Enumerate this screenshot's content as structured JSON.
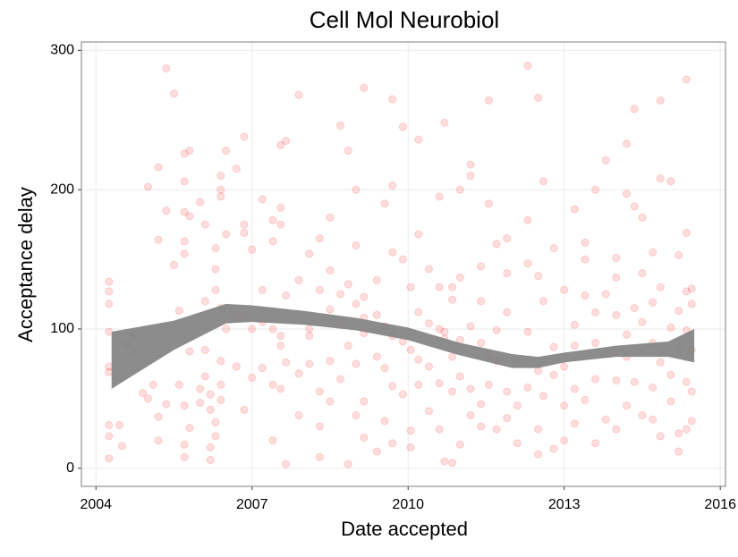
{
  "chart_data": {
    "type": "scatter",
    "title": "Cell Mol Neurobiol",
    "x_label": "Date accepted",
    "y_label": "Acceptance delay",
    "xlim": [
      2003.72,
      2016.1
    ],
    "ylim": [
      -13,
      306
    ],
    "xticks": [
      2004,
      2007,
      2010,
      2013,
      2016
    ],
    "yticks": [
      0,
      100,
      200,
      300
    ],
    "grid": true,
    "series": [
      {
        "color": "#ff0000",
        "opacity": 0.13,
        "x": [
          2004.25,
          2004.25,
          2004.25,
          2004.25,
          2004.25,
          2004.25,
          2004.25,
          2004.25,
          2004.25,
          2004.45,
          2004.5,
          2004.6,
          2004.7,
          2004.7,
          2004.9,
          2005.0,
          2005.0,
          2005.1,
          2005.2,
          2005.2,
          2005.2,
          2005.2,
          2005.35,
          2005.35,
          2005.35,
          2005.5,
          2005.5,
          2005.6,
          2005.6,
          2005.7,
          2005.7,
          2005.7,
          2005.7,
          2005.7,
          2005.7,
          2005.7,
          2005.7,
          2005.8,
          2005.8,
          2005.8,
          2005.8,
          2006.0,
          2006.0,
          2006.0,
          2006.1,
          2006.1,
          2006.1,
          2006.1,
          2006.2,
          2006.2,
          2006.2,
          2006.2,
          2006.3,
          2006.3,
          2006.3,
          2006.3,
          2006.3,
          2006.4,
          2006.4,
          2006.4,
          2006.4,
          2006.4,
          2006.4,
          2006.4,
          2006.5,
          2006.5,
          2006.5,
          2006.7,
          2006.7,
          2006.7,
          2006.85,
          2006.85,
          2006.85,
          2006.85,
          2006.85,
          2007.0,
          2007.0,
          2007.0,
          2007.2,
          2007.2,
          2007.2,
          2007.2,
          2007.4,
          2007.4,
          2007.4,
          2007.4,
          2007.4,
          2007.55,
          2007.55,
          2007.55,
          2007.55,
          2007.55,
          2007.55,
          2007.65,
          2007.65,
          2007.65,
          2007.65,
          2007.9,
          2007.9,
          2007.9,
          2007.9,
          2008.1,
          2008.1,
          2008.1,
          2008.1,
          2008.3,
          2008.3,
          2008.3,
          2008.3,
          2008.3,
          2008.5,
          2008.5,
          2008.5,
          2008.5,
          2008.5,
          2008.7,
          2008.7,
          2008.7,
          2008.7,
          2008.85,
          2008.85,
          2008.85,
          2008.85,
          2009.0,
          2009.0,
          2009.0,
          2009.0,
          2009.0,
          2009.15,
          2009.15,
          2009.15,
          2009.15,
          2009.15,
          2009.15,
          2009.4,
          2009.4,
          2009.4,
          2009.4,
          2009.55,
          2009.55,
          2009.55,
          2009.55,
          2009.7,
          2009.7,
          2009.7,
          2009.7,
          2009.7,
          2009.7,
          2009.9,
          2009.9,
          2009.9,
          2009.9,
          2010.05,
          2010.05,
          2010.05,
          2010.05,
          2010.2,
          2010.2,
          2010.2,
          2010.2,
          2010.2,
          2010.4,
          2010.4,
          2010.4,
          2010.4,
          2010.6,
          2010.6,
          2010.6,
          2010.6,
          2010.6,
          2010.7,
          2010.7,
          2010.7,
          2010.7,
          2010.85,
          2010.85,
          2010.85,
          2010.85,
          2010.85,
          2011.0,
          2011.0,
          2011.0,
          2011.0,
          2011.0,
          2011.2,
          2011.2,
          2011.2,
          2011.2,
          2011.2,
          2011.4,
          2011.4,
          2011.4,
          2011.4,
          2011.4,
          2011.55,
          2011.55,
          2011.55,
          2011.55,
          2011.7,
          2011.7,
          2011.7,
          2011.7,
          2011.9,
          2011.9,
          2011.9,
          2011.9,
          2011.9,
          2012.1,
          2012.1,
          2012.1,
          2012.3,
          2012.3,
          2012.3,
          2012.3,
          2012.3,
          2012.5,
          2012.5,
          2012.5,
          2012.5,
          2012.5,
          2012.6,
          2012.6,
          2012.6,
          2012.8,
          2012.8,
          2012.8,
          2012.8,
          2013.0,
          2013.0,
          2013.0,
          2013.0,
          2013.2,
          2013.2,
          2013.2,
          2013.2,
          2013.2,
          2013.4,
          2013.4,
          2013.4,
          2013.4,
          2013.6,
          2013.6,
          2013.6,
          2013.6,
          2013.6,
          2013.8,
          2013.8,
          2013.8,
          2013.8,
          2014.0,
          2014.0,
          2014.0,
          2014.0,
          2014.0,
          2014.2,
          2014.2,
          2014.2,
          2014.2,
          2014.2,
          2014.35,
          2014.35,
          2014.35,
          2014.35,
          2014.5,
          2014.5,
          2014.5,
          2014.5,
          2014.7,
          2014.7,
          2014.7,
          2014.7,
          2014.7,
          2014.85,
          2014.85,
          2014.85,
          2014.85,
          2014.85,
          2015.05,
          2015.05,
          2015.05,
          2015.05,
          2015.2,
          2015.2,
          2015.2,
          2015.2,
          2015.2,
          2015.35,
          2015.35,
          2015.35,
          2015.35,
          2015.35,
          2015.35,
          2015.45,
          2015.45,
          2015.45,
          2015.45,
          2015.45
        ],
        "values": [
          134,
          127,
          118,
          98,
          73,
          69,
          31,
          23,
          7,
          31,
          16,
          89,
          95,
          83,
          54,
          202,
          50,
          60,
          164,
          216,
          20,
          37,
          287,
          46,
          185,
          146,
          269,
          113,
          60,
          226,
          184,
          206,
          163,
          154,
          45,
          17,
          8,
          228,
          181,
          84,
          29,
          57,
          47,
          191,
          175,
          120,
          66,
          85,
          6,
          15,
          53,
          42,
          158,
          143,
          128,
          33,
          23,
          200,
          210,
          195,
          115,
          77,
          60,
          49,
          228,
          168,
          100,
          215,
          110,
          73,
          175,
          238,
          169,
          109,
          42,
          100,
          65,
          157,
          72,
          128,
          193,
          105,
          163,
          178,
          60,
          20,
          100,
          232,
          175,
          187,
          88,
          57,
          95,
          235,
          3,
          76,
          124,
          268,
          135,
          68,
          38,
          75,
          100,
          154,
          95,
          165,
          30,
          55,
          128,
          8,
          142,
          180,
          77,
          114,
          48,
          246,
          125,
          104,
          64,
          228,
          88,
          132,
          3,
          200,
          160,
          118,
          75,
          38,
          273,
          108,
          97,
          123,
          22,
          48,
          135,
          110,
          80,
          12,
          190,
          102,
          72,
          34,
          265,
          203,
          155,
          95,
          59,
          18,
          245,
          150,
          91,
          53,
          130,
          85,
          27,
          15,
          236,
          168,
          112,
          78,
          60,
          143,
          104,
          41,
          73,
          195,
          130,
          100,
          61,
          28,
          248,
          98,
          93,
          5,
          130,
          121,
          80,
          55,
          4,
          200,
          137,
          92,
          66,
          17,
          210,
          218,
          102,
          57,
          38,
          145,
          120,
          90,
          46,
          30,
          264,
          190,
          80,
          60,
          161,
          99,
          77,
          28,
          165,
          140,
          112,
          55,
          36,
          76,
          45,
          18,
          289,
          178,
          147,
          98,
          58,
          266,
          138,
          70,
          28,
          10,
          206,
          120,
          52,
          158,
          87,
          67,
          14,
          128,
          73,
          20,
          45,
          186,
          103,
          88,
          57,
          32,
          162,
          150,
          124,
          49,
          200,
          112,
          90,
          64,
          18,
          221,
          125,
          82,
          35,
          151,
          137,
          110,
          63,
          28,
          233,
          197,
          96,
          80,
          45,
          258,
          188,
          115,
          62,
          180,
          140,
          105,
          38,
          155,
          119,
          90,
          58,
          35,
          264,
          208,
          130,
          76,
          23,
          206,
          101,
          67,
          48,
          153,
          113,
          85,
          25,
          12,
          279,
          169,
          127,
          99,
          62,
          28,
          129,
          118,
          85,
          55,
          34
        ]
      }
    ],
    "band": {
      "color": "#808080",
      "x": [
        2004.3,
        2005.5,
        2006.5,
        2007.0,
        2008.0,
        2009.0,
        2010.0,
        2011.0,
        2012.0,
        2012.5,
        2013.0,
        2014.0,
        2015.0,
        2015.5
      ],
      "lower": [
        57,
        85,
        104,
        105,
        103,
        99,
        92,
        81,
        72,
        72,
        76,
        80,
        80,
        76
      ],
      "upper": [
        98,
        106,
        118,
        117,
        113,
        108,
        101,
        90,
        82,
        80,
        83,
        88,
        91,
        100
      ]
    }
  }
}
